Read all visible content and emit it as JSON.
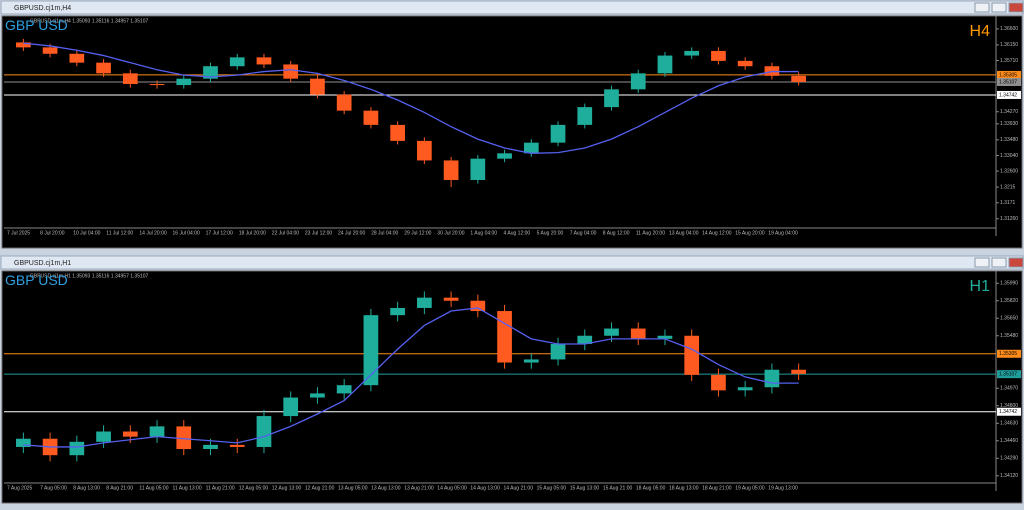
{
  "windows": [
    {
      "title": "GBPUSD.cj1m,H4"
    },
    {
      "title": "GBPUSD.cj1m,H1"
    }
  ],
  "chart_data": [
    {
      "type": "candlestick",
      "title": "GBP USD",
      "timeframe": "H4",
      "timeframe_color": "#ff9900",
      "info": "GBPUSD.cj1m,H4 1.35093 1.35116 1.34957 1.35107",
      "up_color": "#1fae9c",
      "down_color": "#ff5a1f",
      "open": [
        1.3622,
        1.3608,
        1.359,
        1.3565,
        1.3535,
        1.3505,
        1.3502,
        1.352,
        1.3555,
        1.358,
        1.356,
        1.352,
        1.3475,
        1.343,
        1.339,
        1.3345,
        1.329,
        1.3235,
        1.3295,
        1.331,
        1.334,
        1.339,
        1.344,
        1.349,
        1.3535,
        1.3585,
        1.3598,
        1.357,
        1.3555,
        1.3528
      ],
      "high": [
        1.3632,
        1.3618,
        1.36,
        1.3575,
        1.3545,
        1.3515,
        1.353,
        1.3565,
        1.359,
        1.359,
        1.357,
        1.353,
        1.3485,
        1.344,
        1.34,
        1.3355,
        1.33,
        1.3305,
        1.332,
        1.335,
        1.34,
        1.345,
        1.35,
        1.3545,
        1.3595,
        1.3608,
        1.3608,
        1.358,
        1.3565,
        1.3538
      ],
      "low": [
        1.3598,
        1.358,
        1.3555,
        1.3525,
        1.3495,
        1.3492,
        1.3492,
        1.351,
        1.3545,
        1.355,
        1.351,
        1.3465,
        1.342,
        1.338,
        1.3335,
        1.328,
        1.3215,
        1.3225,
        1.3285,
        1.33,
        1.333,
        1.338,
        1.343,
        1.348,
        1.3525,
        1.3575,
        1.356,
        1.3545,
        1.3518,
        1.3501
      ],
      "close": [
        1.3608,
        1.359,
        1.3565,
        1.3535,
        1.3505,
        1.3502,
        1.352,
        1.3555,
        1.358,
        1.356,
        1.352,
        1.3475,
        1.343,
        1.339,
        1.3345,
        1.329,
        1.3235,
        1.3295,
        1.331,
        1.334,
        1.339,
        1.344,
        1.349,
        1.3535,
        1.3585,
        1.3598,
        1.357,
        1.3555,
        1.3528,
        1.3511
      ],
      "ma": {
        "color": "#5560f0",
        "values": [
          1.362,
          1.3612,
          1.36,
          1.3585,
          1.3565,
          1.3545,
          1.353,
          1.3525,
          1.353,
          1.354,
          1.3545,
          1.3535,
          1.3515,
          1.349,
          1.346,
          1.3425,
          1.3385,
          1.335,
          1.3325,
          1.331,
          1.3312,
          1.3325,
          1.335,
          1.3385,
          1.3425,
          1.3465,
          1.35,
          1.3525,
          1.354,
          1.354
        ]
      },
      "ylim": [
        1.31,
        1.3685
      ],
      "yticks": [
        {
          "value": 1.366,
          "label": "1.36600"
        },
        {
          "value": 1.3615,
          "label": "1.36150"
        },
        {
          "value": 1.3571,
          "label": "1.35710"
        },
        {
          "value": 1.3427,
          "label": "1.34270"
        },
        {
          "value": 1.3393,
          "label": "1.33930"
        },
        {
          "value": 1.3348,
          "label": "1.33480"
        },
        {
          "value": 1.3304,
          "label": "1.33040"
        },
        {
          "value": 1.326,
          "label": "1.32600"
        },
        1.3215,
        1.3171,
        {
          "value": 1.3126,
          "label": "1.31260"
        }
      ],
      "price_lines": [
        {
          "value": 1.35305,
          "color": "#ff8c1a"
        },
        {
          "value": 1.35107,
          "color": "#909090"
        },
        {
          "value": 1.34742,
          "color": "#ffffff"
        }
      ],
      "xlabels": [
        "7 Jul 2025",
        "8 Jul 20:00",
        "10 Jul 04:00",
        "11 Jul 12:00",
        "14 Jul 20:00",
        "16 Jul 04:00",
        "17 Jul 12:00",
        "18 Jul 20:00",
        "22 Jul 04:00",
        "23 Jul 12:00",
        "24 Jul 20:00",
        "28 Jul 04:00",
        "29 Jul 12:00",
        "30 Jul 20:00",
        "1 Aug 04:00",
        "4 Aug 12:00",
        "5 Aug 20:00",
        "7 Aug 04:00",
        "8 Aug 12:00",
        "11 Aug 20:00",
        "13 Aug 04:00",
        "14 Aug 12:00",
        "15 Aug 20:00",
        "19 Aug 04:00"
      ]
    },
    {
      "type": "candlestick",
      "title": "GBP USD",
      "timeframe": "H1",
      "timeframe_color": "#1fae9c",
      "info": "GBPUSD.cj1m,H1 1.35093 1.35116 1.34957 1.35107",
      "up_color": "#1fae9c",
      "down_color": "#ff5a1f",
      "open": [
        1.344,
        1.3448,
        1.3432,
        1.3445,
        1.3455,
        1.345,
        1.346,
        1.3438,
        1.3442,
        1.344,
        1.347,
        1.3488,
        1.3492,
        1.35,
        1.3568,
        1.3575,
        1.3585,
        1.3582,
        1.3572,
        1.3522,
        1.3525,
        1.354,
        1.3548,
        1.3555,
        1.3545,
        1.3548,
        1.351,
        1.3495,
        1.3498,
        1.3515
      ],
      "high": [
        1.3454,
        1.3454,
        1.3451,
        1.3461,
        1.3461,
        1.3466,
        1.3466,
        1.3448,
        1.3448,
        1.3476,
        1.3494,
        1.3498,
        1.3506,
        1.3574,
        1.3581,
        1.3591,
        1.3591,
        1.3588,
        1.3578,
        1.3531,
        1.3546,
        1.3554,
        1.3561,
        1.3561,
        1.3554,
        1.3554,
        1.3516,
        1.3504,
        1.3521,
        1.3521
      ],
      "low": [
        1.3434,
        1.3426,
        1.3426,
        1.3439,
        1.3444,
        1.3444,
        1.3432,
        1.3432,
        1.3434,
        1.3434,
        1.3464,
        1.3482,
        1.3486,
        1.3494,
        1.3562,
        1.3569,
        1.3576,
        1.3566,
        1.3516,
        1.3516,
        1.3519,
        1.3534,
        1.3542,
        1.3539,
        1.3539,
        1.3504,
        1.3489,
        1.3489,
        1.3492,
        1.3505
      ],
      "close": [
        1.3448,
        1.3432,
        1.3445,
        1.3455,
        1.345,
        1.346,
        1.3438,
        1.3442,
        1.344,
        1.347,
        1.3488,
        1.3492,
        1.35,
        1.3568,
        1.3575,
        1.3585,
        1.3582,
        1.3572,
        1.3522,
        1.3525,
        1.354,
        1.3548,
        1.3555,
        1.3545,
        1.3548,
        1.351,
        1.3495,
        1.3498,
        1.3515,
        1.3511
      ],
      "ma": {
        "color": "#5560f0",
        "values": [
          1.3442,
          1.344,
          1.344,
          1.3444,
          1.3447,
          1.345,
          1.3448,
          1.3446,
          1.3444,
          1.345,
          1.346,
          1.3472,
          1.3485,
          1.351,
          1.3535,
          1.3558,
          1.3572,
          1.3575,
          1.356,
          1.3545,
          1.354,
          1.354,
          1.3545,
          1.3545,
          1.3545,
          1.3535,
          1.352,
          1.3508,
          1.3502,
          1.3502
        ]
      },
      "ylim": [
        1.3405,
        1.3607
      ],
      "yticks": [
        {
          "value": 1.3599,
          "label": "1.35990"
        },
        {
          "value": 1.3582,
          "label": "1.35820"
        },
        {
          "value": 1.3565,
          "label": "1.35650"
        },
        {
          "value": 1.3548,
          "label": "1.35480"
        },
        {
          "value": 1.3497,
          "label": "1.34970"
        },
        {
          "value": 1.348,
          "label": "1.34800"
        },
        {
          "value": 1.3463,
          "label": "1.34630"
        },
        {
          "value": 1.3446,
          "label": "1.34460"
        },
        {
          "value": 1.3429,
          "label": "1.34290"
        },
        {
          "value": 1.3412,
          "label": "1.34120"
        }
      ],
      "price_lines": [
        {
          "value": 1.35305,
          "color": "#ff8c1a"
        },
        {
          "value": 1.35107,
          "color": "#1f9e9c"
        },
        {
          "value": 1.34742,
          "color": "#ffffff"
        }
      ],
      "xlabels": [
        "7 Aug 2025",
        "7 Aug 05:00",
        "8 Aug 13:00",
        "8 Aug 21:00",
        "11 Aug 05:00",
        "11 Aug 13:00",
        "11 Aug 21:00",
        "12 Aug 05:00",
        "12 Aug 13:00",
        "12 Aug 21:00",
        "13 Aug 05:00",
        "13 Aug 13:00",
        "13 Aug 21:00",
        "14 Aug 05:00",
        "14 Aug 13:00",
        "14 Aug 21:00",
        "15 Aug 05:00",
        "15 Aug 13:00",
        "15 Aug 21:00",
        "18 Aug 05:00",
        "18 Aug 13:00",
        "18 Aug 21:00",
        "19 Aug 05:00",
        "19 Aug 13:00"
      ]
    }
  ]
}
